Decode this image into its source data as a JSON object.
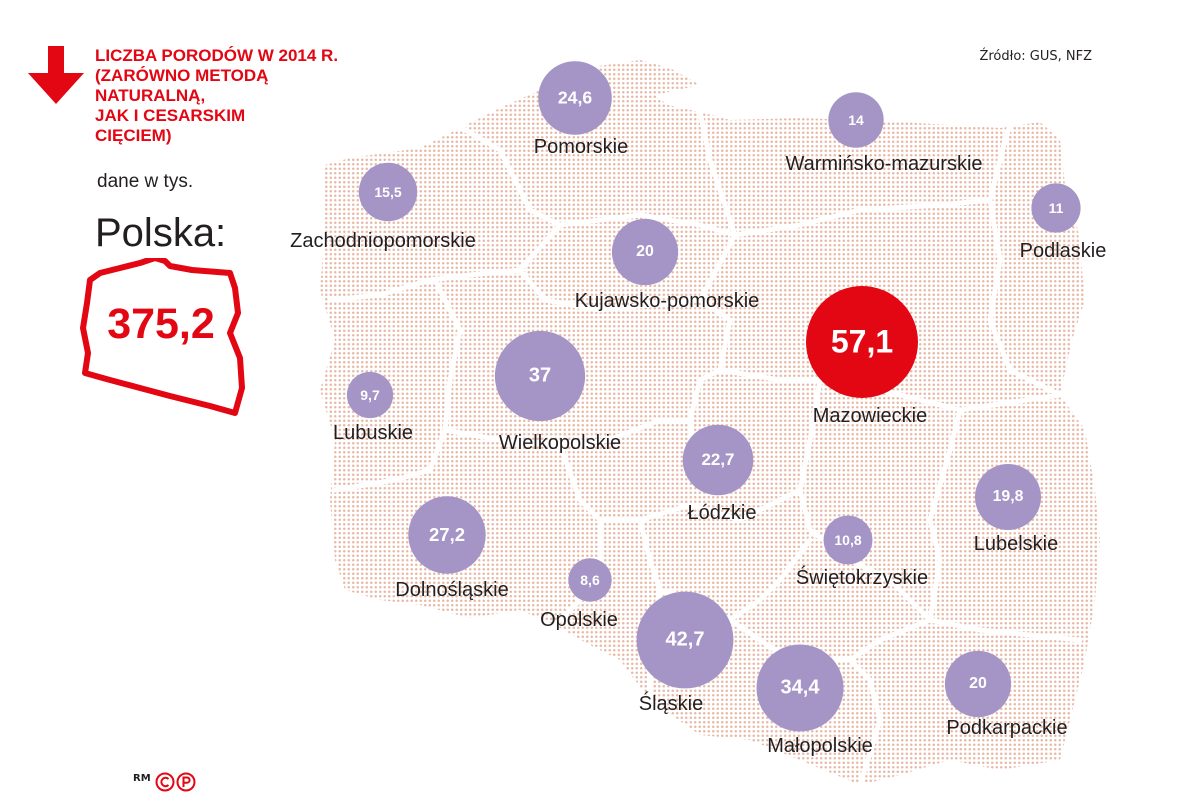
{
  "title_lines": [
    "LICZBA PORODÓW W 2014 R.",
    "(ZARÓWNO METODĄ",
    "NATURALNĄ,",
    "JAK I CESARSKIM",
    "CIĘCIEM)"
  ],
  "unit": "dane w tys.",
  "country_label": "Polska:",
  "country_total": "375,2",
  "source": "Źródło: GUS, NFZ",
  "credit": "RM",
  "icons": [
    "arrow-down-icon",
    "copyright-icon",
    "phonogram-icon"
  ],
  "colors": {
    "accent": "#e30613",
    "bubble": "#a595c6",
    "bubble_highlight": "#e30613",
    "map_dots": "#e8b9a7"
  },
  "regions": [
    {
      "name": "Pomorskie",
      "value": 24.6,
      "value_label": "24,6"
    },
    {
      "name": "Warmińsko-mazurskie",
      "value": 14,
      "value_label": "14"
    },
    {
      "name": "Zachodniopomorskie",
      "value": 15.5,
      "value_label": "15,5"
    },
    {
      "name": "Podlaskie",
      "value": 11,
      "value_label": "11"
    },
    {
      "name": "Kujawsko-pomorskie",
      "value": 20,
      "value_label": "20"
    },
    {
      "name": "Mazowieckie",
      "value": 57.1,
      "value_label": "57,1",
      "highlight": true
    },
    {
      "name": "Lubuskie",
      "value": 9.7,
      "value_label": "9,7"
    },
    {
      "name": "Wielkopolskie",
      "value": 37,
      "value_label": "37"
    },
    {
      "name": "Łódzkie",
      "value": 22.7,
      "value_label": "22,7"
    },
    {
      "name": "Lubelskie",
      "value": 19.8,
      "value_label": "19,8"
    },
    {
      "name": "Dolnośląskie",
      "value": 27.2,
      "value_label": "27,2"
    },
    {
      "name": "Świętokrzyskie",
      "value": 10.8,
      "value_label": "10,8"
    },
    {
      "name": "Opolskie",
      "value": 8.6,
      "value_label": "8,6"
    },
    {
      "name": "Śląskie",
      "value": 42.7,
      "value_label": "42,7"
    },
    {
      "name": "Małopolskie",
      "value": 34.4,
      "value_label": "34,4"
    },
    {
      "name": "Podkarpackie",
      "value": 20,
      "value_label": "20"
    }
  ]
}
